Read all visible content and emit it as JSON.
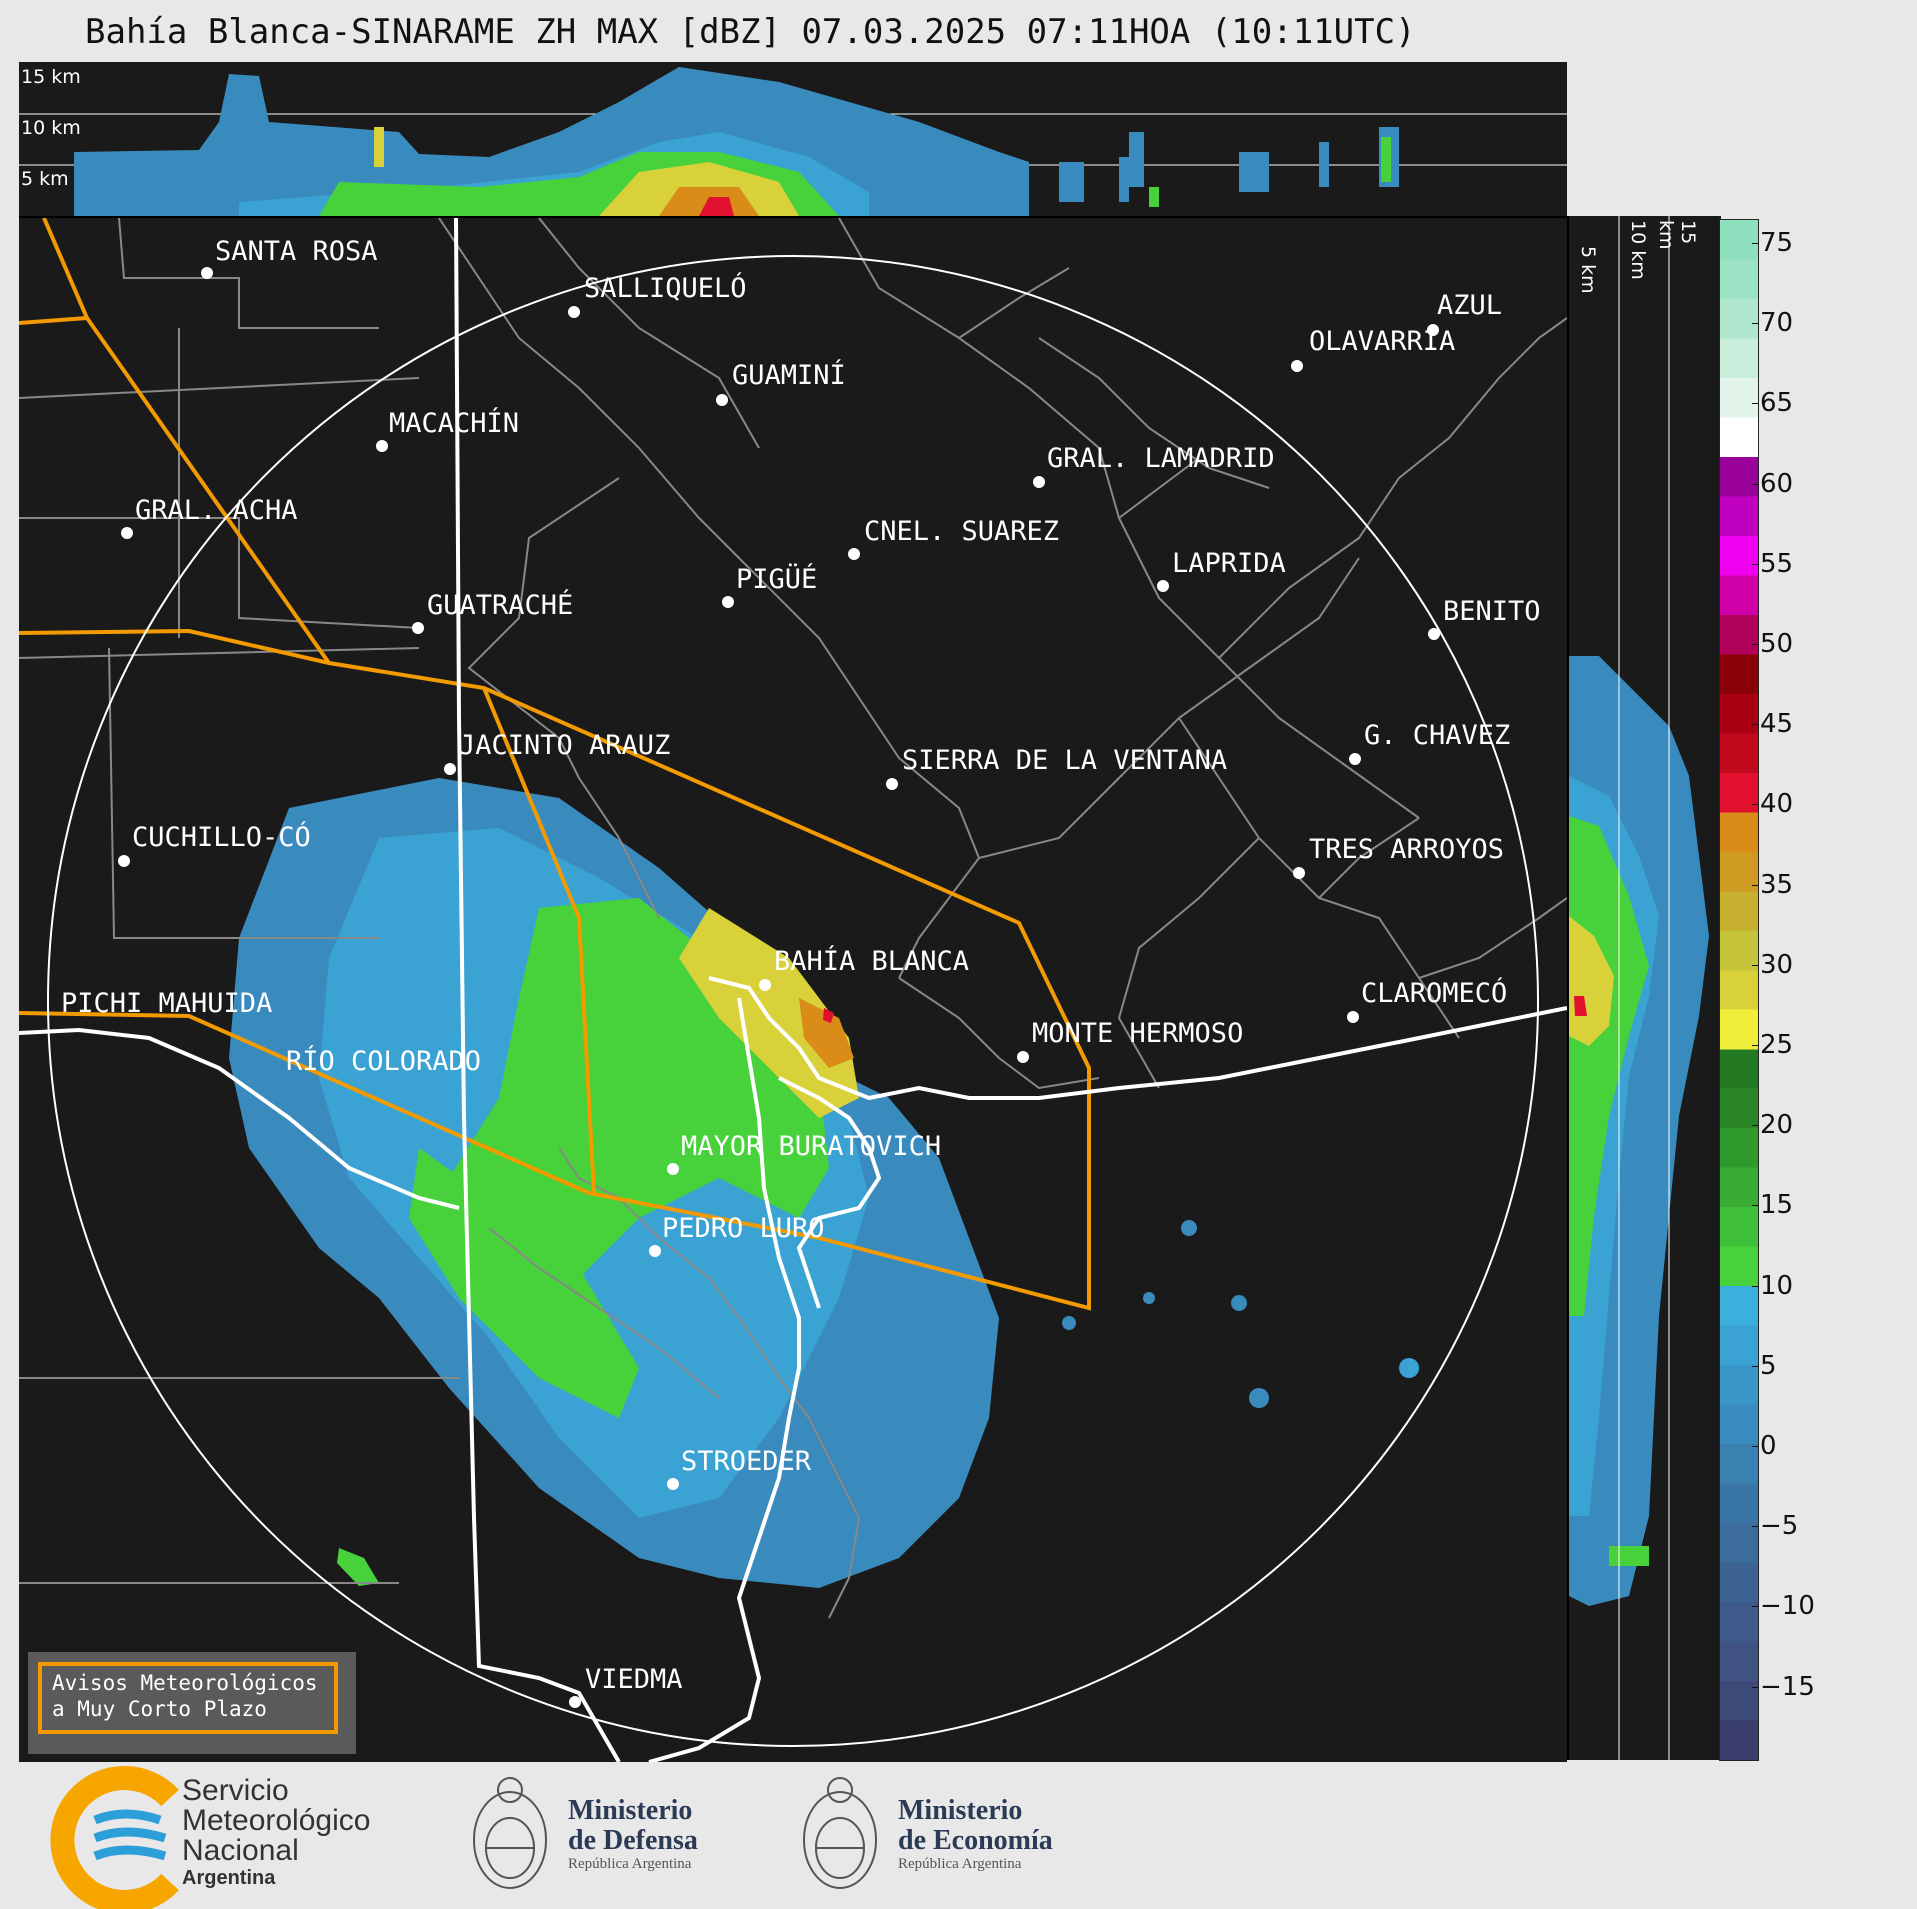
{
  "title": "Bahía Blanca-SINARAME ZH MAX [dBZ] 07.03.2025 07:11HOA (10:11UTC)",
  "top_panel": {
    "labels": [
      "15 km",
      "10 km",
      "5 km"
    ]
  },
  "side_panel": {
    "labels": [
      "5 km",
      "10 km",
      "15 km"
    ]
  },
  "colorbar": {
    "ticks": [
      "75",
      "70",
      "65",
      "60",
      "55",
      "50",
      "45",
      "40",
      "35",
      "30",
      "25",
      "20",
      "15",
      "10",
      "5",
      "0",
      "−5",
      "−10",
      "−15"
    ],
    "colors_low_to_high": [
      "#3a3f6e",
      "#3d4978",
      "#3f5281",
      "#3e5a8a",
      "#3d6393",
      "#3b6c9c",
      "#3975a6",
      "#3a80b0",
      "#3a8bbd",
      "#3a96c9",
      "#3aa3d4",
      "#3bb0dd",
      "#47d13b",
      "#3fbf3a",
      "#38ac33",
      "#30992c",
      "#2a8627",
      "#247a22",
      "#f0ee3b",
      "#d9d13a",
      "#c4c33a",
      "#c7b02f",
      "#cf9a22",
      "#d98c18",
      "#e0102e",
      "#c20a1c",
      "#a80012",
      "#8a0008",
      "#b0005a",
      "#d000a8",
      "#ef00ef",
      "#c000c0",
      "#9a009a",
      "#ffffff",
      "#e3f5ea",
      "#c9eedb",
      "#b0e8cf",
      "#9be3c4",
      "#8ddfbe"
    ]
  },
  "cities": [
    {
      "name": "SANTA ROSA"
    },
    {
      "name": "SALLIQUELÓ"
    },
    {
      "name": "AZUL"
    },
    {
      "name": "OLAVARRÍA"
    },
    {
      "name": "GUAMINÍ"
    },
    {
      "name": "MACACHÍN"
    },
    {
      "name": "GRAL. LAMADRID"
    },
    {
      "name": "GRAL. ACHA"
    },
    {
      "name": "CNEL. SUAREZ"
    },
    {
      "name": "LAPRIDA"
    },
    {
      "name": "PIGÜÉ"
    },
    {
      "name": "GUATRACHÉ"
    },
    {
      "name": "BENITO"
    },
    {
      "name": "G. CHAVEZ"
    },
    {
      "name": "JACINTO ARAUZ"
    },
    {
      "name": "SIERRA DE LA VENTANA"
    },
    {
      "name": "CUCHILLO-CÓ"
    },
    {
      "name": "TRES ARROYOS"
    },
    {
      "name": "BAHÍA BLANCA"
    },
    {
      "name": "PICHI MAHUIDA"
    },
    {
      "name": "CLAROMECÓ"
    },
    {
      "name": "MONTE HERMOSO"
    },
    {
      "name": "RÍO COLORADO"
    },
    {
      "name": "MAYOR BURATOVICH"
    },
    {
      "name": "PEDRO LURO"
    },
    {
      "name": "STROEDER"
    },
    {
      "name": "VIEDMA"
    }
  ],
  "aviso": {
    "line1": "Avisos Meteorológicos",
    "line2": "a Muy Corto Plazo"
  },
  "logos": {
    "smn": {
      "line1": "Servicio",
      "line2": "Meteorológico",
      "line3": "Nacional",
      "line4": "Argentina"
    },
    "defensa": {
      "line1": "Ministerio",
      "line2": "de Defensa",
      "line3": "República Argentina"
    },
    "economia": {
      "line1": "Ministerio",
      "line2": "de Economía",
      "line3": "República Argentina"
    }
  }
}
